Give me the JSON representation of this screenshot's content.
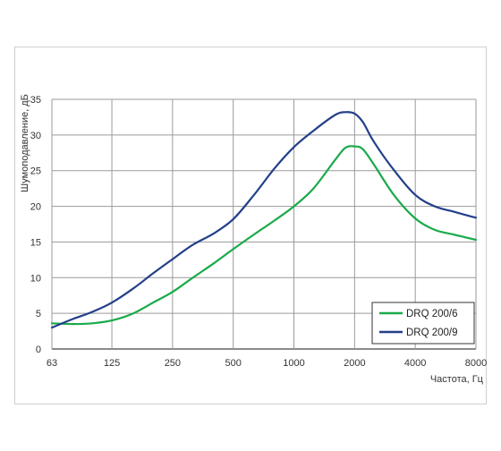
{
  "chart_data": {
    "type": "line",
    "xlabel": "Частота, Гц",
    "ylabel": "Шумоподавление, дБ",
    "x_scale": "log2",
    "x_ticks": [
      63,
      125,
      250,
      500,
      1000,
      2000,
      4000,
      8000
    ],
    "x_tick_labels": [
      "63",
      "125",
      "250",
      "500",
      "1000",
      "2000",
      "4000",
      "8000"
    ],
    "ylim": [
      0,
      35
    ],
    "y_ticks": [
      0,
      5,
      10,
      15,
      20,
      25,
      30,
      35
    ],
    "y_tick_labels": [
      "0",
      "5",
      "10",
      "15",
      "20",
      "25",
      "30",
      "35"
    ],
    "grid": true,
    "legend_position": "bottom-right",
    "series": [
      {
        "name": "DRQ 200/6",
        "color": "#1aaa4a",
        "x": [
          63,
          80,
          100,
          125,
          160,
          200,
          250,
          315,
          400,
          500,
          630,
          800,
          1000,
          1250,
          1600,
          1800,
          2000,
          2200,
          2500,
          3150,
          4000,
          5000,
          6300,
          8000
        ],
        "y": [
          3.6,
          3.5,
          3.6,
          4.0,
          5.0,
          6.5,
          8.0,
          10.0,
          12.0,
          14.0,
          16.0,
          18.0,
          20.0,
          22.5,
          26.5,
          28.2,
          28.4,
          28.0,
          25.8,
          21.5,
          18.3,
          16.7,
          16.0,
          15.3
        ]
      },
      {
        "name": "DRQ 200/9",
        "color": "#233f8a",
        "x": [
          63,
          80,
          100,
          125,
          160,
          200,
          250,
          315,
          400,
          500,
          630,
          800,
          1000,
          1250,
          1600,
          1800,
          2000,
          2200,
          2500,
          3150,
          4000,
          5000,
          6300,
          8000
        ],
        "y": [
          3.0,
          4.2,
          5.2,
          6.5,
          8.5,
          10.6,
          12.6,
          14.6,
          16.2,
          18.2,
          21.5,
          25.3,
          28.3,
          30.6,
          32.8,
          33.2,
          33.0,
          31.8,
          29.0,
          25.0,
          21.6,
          20.0,
          19.2,
          18.4
        ]
      }
    ]
  }
}
